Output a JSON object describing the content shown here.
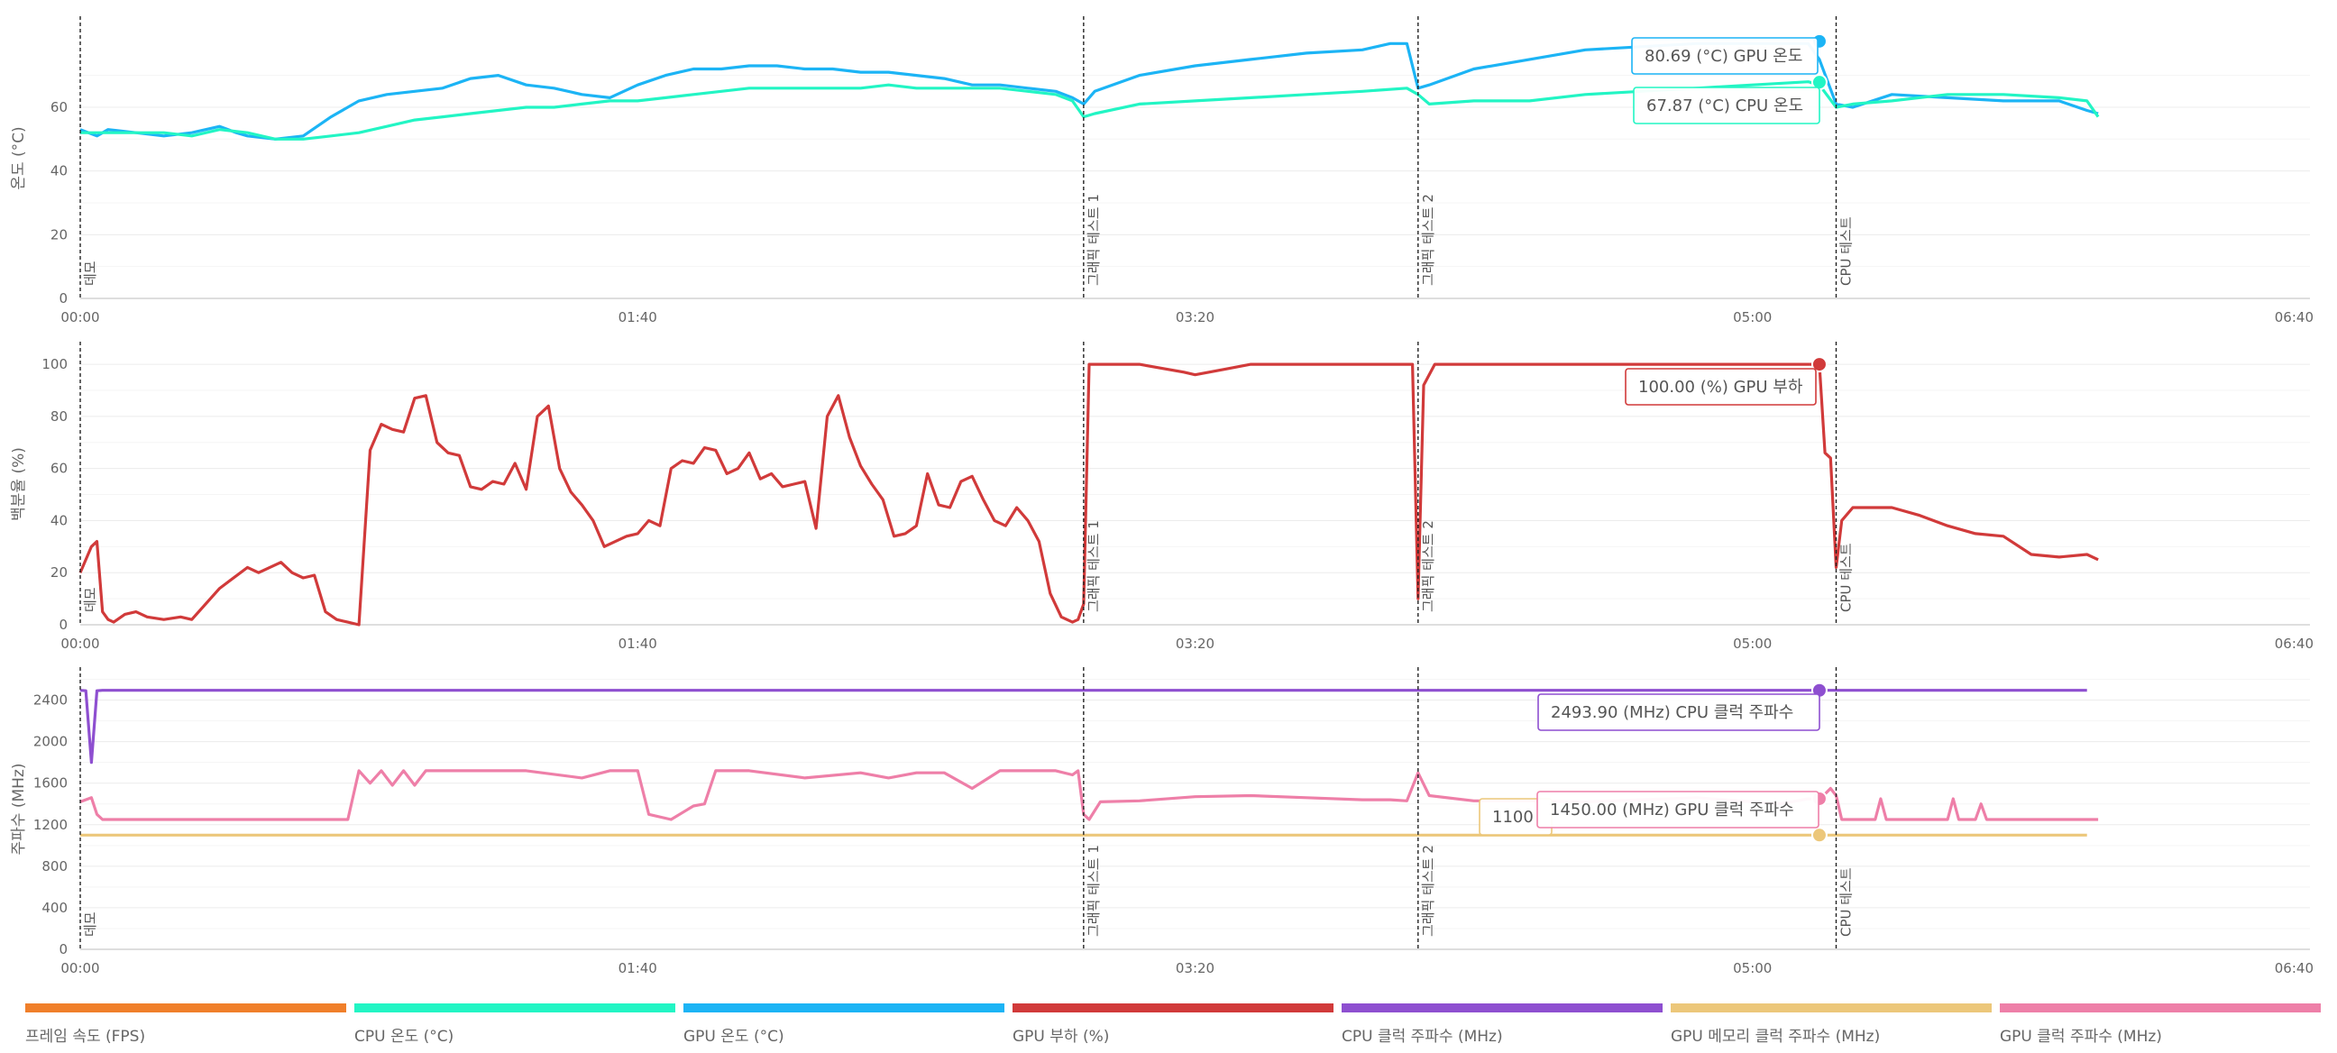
{
  "x_axis": {
    "ticks": [
      "00:00",
      "01:40",
      "03:20",
      "05:00",
      "06:40"
    ],
    "range_seconds": [
      0,
      400
    ]
  },
  "markers": [
    {
      "label": "데모",
      "t": 0
    },
    {
      "label": "그래픽 테스트 1",
      "t": 180
    },
    {
      "label": "그래픽 테스트 2",
      "t": 240
    },
    {
      "label": "CPU 테스트",
      "t": 315
    }
  ],
  "panels": [
    {
      "ylabel": "온도 (°C)",
      "ylim": [
        0,
        88
      ],
      "yticks": [
        "0",
        "20",
        "40",
        "60"
      ]
    },
    {
      "ylabel": "백분율 (%)",
      "ylim": [
        0,
        108
      ],
      "yticks": [
        "0",
        "20",
        "40",
        "60",
        "80",
        "100"
      ]
    },
    {
      "ylabel": "주파수 (MHz)",
      "ylim": [
        0,
        2700
      ],
      "yticks": [
        "0",
        "400",
        "800",
        "1200",
        "1600",
        "2000",
        "2400"
      ]
    }
  ],
  "tooltips": {
    "gpu_temp": "80.69 (°C) GPU 온도",
    "cpu_temp": "67.87 (°C) CPU 온도",
    "gpu_load": "100.00 (%) GPU 부하",
    "cpu_clock": "2493.90 (MHz) CPU 클럭 주파수",
    "gpu_clock": "1450.00 (MHz) GPU 클럭 주파수",
    "gpu_mem_clock": "1100"
  },
  "legend": [
    {
      "label": "프레임 속도 (FPS)",
      "color": "#f07f2a"
    },
    {
      "label": "CPU 온도 (°C)",
      "color": "#22f5c4"
    },
    {
      "label": "GPU 온도 (°C)",
      "color": "#1cb4f5"
    },
    {
      "label": "GPU 부하 (%)",
      "color": "#d13a3a"
    },
    {
      "label": "CPU 클럭 주파수 (MHz)",
      "color": "#8e4fd0"
    },
    {
      "label": "GPU 메모리 클럭 주파수 (MHz)",
      "color": "#ecc77a"
    },
    {
      "label": "GPU 클럭 주파수 (MHz)",
      "color": "#ee7fa8"
    }
  ],
  "chart_data": [
    {
      "type": "line",
      "ylabel": "온도 (°C)",
      "ylim": [
        0,
        88
      ],
      "x_unit": "seconds",
      "series": [
        {
          "name": "GPU 온도 (°C)",
          "color": "#1cb4f5",
          "x": [
            0,
            3,
            5,
            10,
            15,
            20,
            25,
            28,
            30,
            35,
            40,
            45,
            50,
            55,
            60,
            65,
            70,
            75,
            80,
            85,
            90,
            95,
            100,
            105,
            110,
            115,
            120,
            125,
            130,
            135,
            140,
            145,
            150,
            155,
            160,
            165,
            170,
            175,
            178,
            180,
            182,
            190,
            200,
            210,
            220,
            230,
            235,
            238,
            240,
            242,
            250,
            260,
            270,
            280,
            290,
            300,
            310,
            312,
            315,
            318,
            325,
            335,
            345,
            355,
            360,
            362
          ],
          "values": [
            53,
            51,
            53,
            52,
            51,
            52,
            54,
            52,
            51,
            50,
            51,
            57,
            62,
            64,
            65,
            66,
            69,
            70,
            67,
            66,
            64,
            63,
            67,
            70,
            72,
            72,
            73,
            73,
            72,
            72,
            71,
            71,
            70,
            69,
            67,
            67,
            66,
            65,
            63,
            61,
            65,
            70,
            73,
            75,
            77,
            78,
            80,
            80,
            66,
            67,
            72,
            75,
            78,
            79,
            80,
            80,
            80,
            75,
            61,
            60,
            64,
            63,
            62,
            62,
            59,
            58
          ]
        },
        {
          "name": "CPU 온도 (°C)",
          "color": "#22f5c4",
          "x": [
            0,
            5,
            10,
            15,
            20,
            25,
            30,
            35,
            40,
            45,
            50,
            55,
            60,
            65,
            70,
            75,
            80,
            85,
            90,
            95,
            100,
            105,
            110,
            115,
            120,
            125,
            130,
            135,
            140,
            145,
            150,
            155,
            160,
            165,
            170,
            175,
            178,
            180,
            182,
            190,
            200,
            210,
            220,
            230,
            238,
            240,
            242,
            250,
            260,
            270,
            280,
            290,
            300,
            310,
            312,
            315,
            318,
            325,
            335,
            345,
            355,
            360,
            362
          ],
          "values": [
            52,
            52,
            52,
            52,
            51,
            53,
            52,
            50,
            50,
            51,
            52,
            54,
            56,
            57,
            58,
            59,
            60,
            60,
            61,
            62,
            62,
            63,
            64,
            65,
            66,
            66,
            66,
            66,
            66,
            67,
            66,
            66,
            66,
            66,
            65,
            64,
            62,
            57,
            58,
            61,
            62,
            63,
            64,
            65,
            66,
            64,
            61,
            62,
            62,
            64,
            65,
            66,
            67,
            68,
            67,
            60,
            61,
            62,
            64,
            64,
            63,
            62,
            57
          ]
        }
      ]
    },
    {
      "type": "line",
      "ylabel": "백분율 (%)",
      "ylim": [
        0,
        108
      ],
      "x_unit": "seconds",
      "series": [
        {
          "name": "GPU 부하 (%)",
          "color": "#d13a3a",
          "x": [
            0,
            2,
            3,
            4,
            5,
            6,
            8,
            10,
            12,
            15,
            18,
            20,
            25,
            30,
            32,
            34,
            36,
            38,
            40,
            42,
            44,
            46,
            48,
            50,
            52,
            54,
            56,
            58,
            60,
            62,
            64,
            66,
            68,
            70,
            72,
            74,
            76,
            78,
            80,
            82,
            84,
            86,
            88,
            90,
            92,
            94,
            96,
            98,
            100,
            102,
            104,
            106,
            108,
            110,
            112,
            114,
            116,
            118,
            120,
            122,
            124,
            126,
            128,
            130,
            132,
            134,
            136,
            138,
            140,
            142,
            144,
            146,
            148,
            150,
            152,
            154,
            156,
            158,
            160,
            162,
            164,
            166,
            168,
            170,
            172,
            174,
            176,
            178,
            179,
            180,
            181,
            183,
            190,
            198,
            200,
            205,
            210,
            220,
            230,
            238,
            239,
            240,
            241,
            243,
            250,
            260,
            270,
            280,
            290,
            300,
            310,
            312,
            313,
            314,
            315,
            316,
            318,
            325,
            330,
            335,
            340,
            345,
            350,
            355,
            360,
            362
          ],
          "values": [
            20,
            30,
            32,
            5,
            2,
            1,
            4,
            5,
            3,
            2,
            3,
            2,
            14,
            22,
            20,
            22,
            24,
            20,
            18,
            19,
            5,
            2,
            1,
            0,
            67,
            77,
            75,
            74,
            87,
            88,
            70,
            66,
            65,
            53,
            52,
            55,
            54,
            62,
            52,
            80,
            84,
            60,
            51,
            46,
            40,
            30,
            32,
            34,
            35,
            40,
            38,
            60,
            63,
            62,
            68,
            67,
            58,
            60,
            66,
            56,
            58,
            53,
            54,
            55,
            37,
            80,
            88,
            72,
            61,
            54,
            48,
            34,
            35,
            38,
            58,
            46,
            45,
            55,
            57,
            48,
            40,
            38,
            45,
            40,
            32,
            12,
            3,
            1,
            2,
            8,
            100,
            100,
            100,
            97,
            96,
            98,
            100,
            100,
            100,
            100,
            100,
            10,
            92,
            100,
            100,
            100,
            100,
            100,
            100,
            100,
            100,
            100,
            66,
            64,
            22,
            40,
            45,
            45,
            42,
            38,
            35,
            34,
            27,
            26,
            27,
            25
          ]
        }
      ]
    },
    {
      "type": "line",
      "ylabel": "주파수 (MHz)",
      "ylim": [
        0,
        2700
      ],
      "x_unit": "seconds",
      "series": [
        {
          "name": "CPU 클럭 주파수 (MHz)",
          "color": "#8e4fd0",
          "x": [
            0,
            1,
            2,
            3,
            4,
            360
          ],
          "values": [
            2494,
            2490,
            1800,
            2490,
            2494,
            2494
          ]
        },
        {
          "name": "GPU 메모리 클럭 주파수 (MHz)",
          "color": "#ecc77a",
          "x": [
            0,
            360
          ],
          "values": [
            1100,
            1100
          ]
        },
        {
          "name": "GPU 클럭 주파수 (MHz)",
          "color": "#ee7fa8",
          "x": [
            0,
            2,
            3,
            4,
            48,
            50,
            52,
            54,
            56,
            58,
            60,
            62,
            64,
            66,
            68,
            70,
            72,
            80,
            90,
            95,
            100,
            102,
            106,
            110,
            112,
            114,
            120,
            130,
            140,
            145,
            150,
            155,
            160,
            165,
            170,
            175,
            178,
            179,
            180,
            181,
            183,
            190,
            200,
            210,
            220,
            230,
            235,
            238,
            240,
            242,
            250,
            260,
            270,
            280,
            290,
            300,
            305,
            310,
            312,
            314,
            315,
            316,
            320,
            322,
            323,
            324,
            335,
            336,
            337,
            340,
            341,
            342,
            360,
            362
          ],
          "values": [
            1420,
            1460,
            1300,
            1250,
            1250,
            1720,
            1600,
            1720,
            1580,
            1720,
            1580,
            1720,
            1720,
            1720,
            1720,
            1720,
            1720,
            1720,
            1650,
            1720,
            1720,
            1300,
            1250,
            1380,
            1400,
            1720,
            1720,
            1650,
            1700,
            1650,
            1700,
            1700,
            1550,
            1720,
            1720,
            1720,
            1680,
            1720,
            1300,
            1250,
            1420,
            1430,
            1470,
            1480,
            1460,
            1440,
            1440,
            1430,
            1700,
            1480,
            1430,
            1430,
            1420,
            1440,
            1460,
            1420,
            1400,
            1450,
            1440,
            1550,
            1480,
            1250,
            1250,
            1250,
            1450,
            1250,
            1250,
            1450,
            1250,
            1250,
            1400,
            1250,
            1250,
            1250
          ]
        }
      ]
    }
  ]
}
